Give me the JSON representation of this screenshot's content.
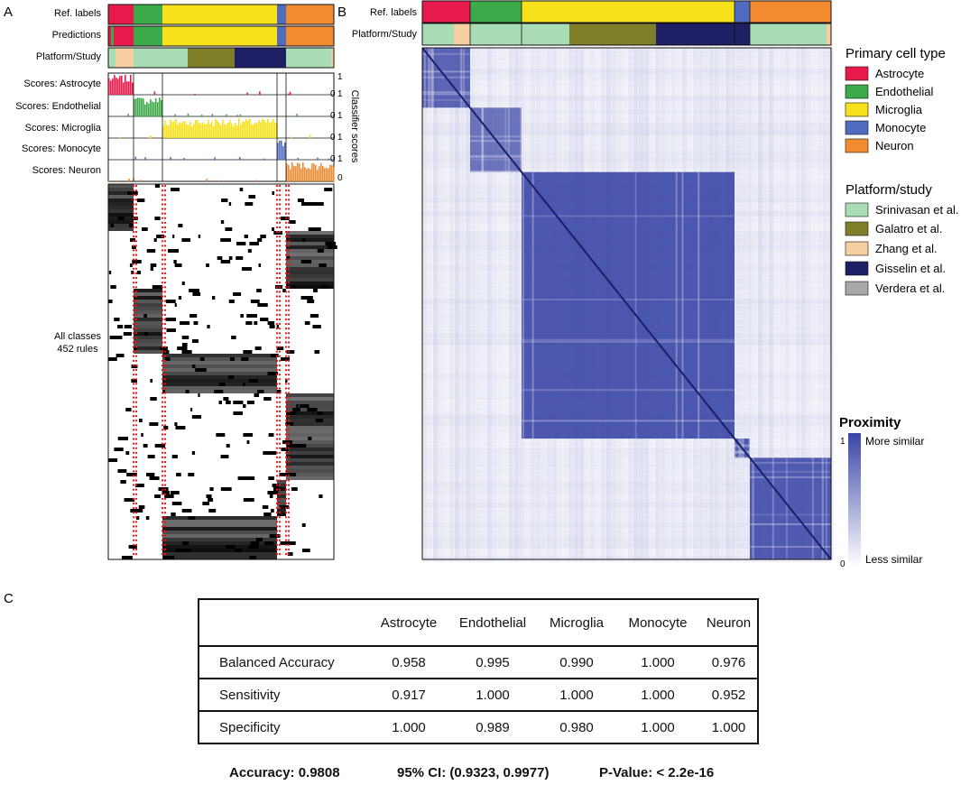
{
  "panel_labels": {
    "a": "A",
    "b": "B",
    "c": "C"
  },
  "panel_a": {
    "row_labels": {
      "ref": "Ref. labels",
      "pred": "Predictions",
      "platform": "Platform/Study",
      "s_astro": "Scores: Astrocyte",
      "s_endo": "Scores: Endothelial",
      "s_micro": "Scores: Microglia",
      "s_mono": "Scores: Monocyte",
      "s_neuron": "Scores: Neuron"
    },
    "axis_max": "1",
    "axis_min": "0",
    "score_axis_title": "Classifier scores",
    "rules_label_1": "All classes",
    "rules_label_2": "452 rules"
  },
  "panel_b": {
    "ref_label": "Ref. labels",
    "platform_label": "Platform/Study",
    "legend_celltype_title": "Primary cell type",
    "celltypes": [
      {
        "name": "Astrocyte",
        "color": "#e8194b"
      },
      {
        "name": "Endothelial",
        "color": "#3caa4a"
      },
      {
        "name": "Microglia",
        "color": "#f7e11b"
      },
      {
        "name": "Monocyte",
        "color": "#4f6cc0"
      },
      {
        "name": "Neuron",
        "color": "#f28a30"
      }
    ],
    "legend_platform_title": "Platform/study",
    "platforms": [
      {
        "name": "Srinivasan et al.",
        "color": "#a8dcb4"
      },
      {
        "name": "Galatro et al.",
        "color": "#7f7f2a"
      },
      {
        "name": "Zhang et al.",
        "color": "#f6cfa1"
      },
      {
        "name": "Gisselin et al.",
        "color": "#1f1f66"
      },
      {
        "name": "Verdera et al.",
        "color": "#a9a9a9"
      }
    ],
    "proximity_title": "Proximity",
    "proximity_max": "1",
    "proximity_min": "0",
    "proximity_high": "More similar",
    "proximity_low": "Less similar",
    "heat_color": "#3a46a6"
  },
  "panel_c": {
    "columns": [
      "Astrocyte",
      "Endothelial",
      "Microglia",
      "Monocyte",
      "Neuron"
    ],
    "rows": [
      {
        "label": "Balanced Accuracy",
        "values": [
          "0.958",
          "0.995",
          "0.990",
          "1.000",
          "0.976"
        ]
      },
      {
        "label": "Sensitivity",
        "values": [
          "0.917",
          "1.000",
          "1.000",
          "1.000",
          "0.952"
        ]
      },
      {
        "label": "Specificity",
        "values": [
          "1.000",
          "0.989",
          "0.980",
          "1.000",
          "1.000"
        ]
      }
    ],
    "accuracy": "Accuracy: 0.9808",
    "ci": "95% CI: (0.9323, 0.9977)",
    "pvalue": "P-Value: < 2.2e-16"
  }
}
